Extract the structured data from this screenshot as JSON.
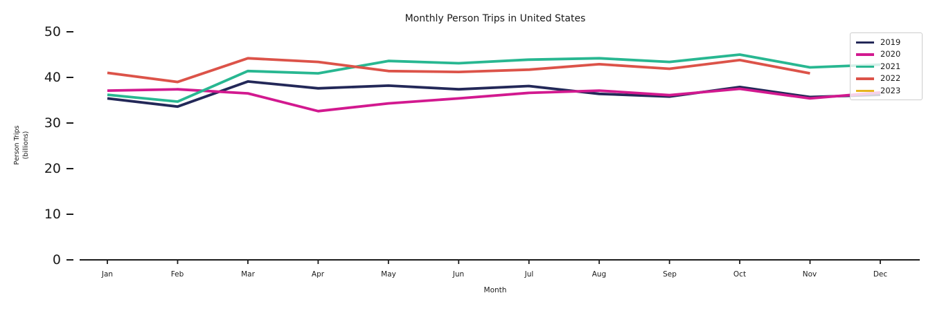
{
  "title": "Monthly Person Trips in United States",
  "chart_data": {
    "type": "line",
    "title": "Monthly Person Trips in United States",
    "xlabel": "Month",
    "ylabel": "Person Trips",
    "ylabel_line2": "(billions)",
    "categories": [
      "Jan",
      "Feb",
      "Mar",
      "Apr",
      "May",
      "Jun",
      "Jul",
      "Aug",
      "Sep",
      "Oct",
      "Nov",
      "Dec"
    ],
    "yticks": [
      0,
      10,
      20,
      30,
      40,
      50
    ],
    "ylim": [
      0,
      52
    ],
    "grid": false,
    "legend_position": "upper right",
    "series": [
      {
        "name": "2019",
        "color": "#232858",
        "values": [
          35.4,
          33.6,
          39.1,
          37.6,
          38.2,
          37.4,
          38.1,
          36.4,
          35.8,
          37.9,
          35.7,
          36.2
        ]
      },
      {
        "name": "2020",
        "color": "#d2198f",
        "values": [
          37.1,
          37.4,
          36.5,
          32.6,
          34.3,
          35.4,
          36.6,
          37.1,
          36.1,
          37.5,
          35.4,
          36.7
        ]
      },
      {
        "name": "2021",
        "color": "#28b791",
        "values": [
          36.2,
          34.7,
          41.4,
          40.9,
          43.6,
          43.1,
          43.9,
          44.2,
          43.4,
          45.0,
          42.2,
          42.8
        ]
      },
      {
        "name": "2022",
        "color": "#dc5349",
        "values": [
          41.0,
          39.0,
          44.2,
          43.4,
          41.4,
          41.2,
          41.7,
          42.9,
          41.9,
          43.8,
          40.9
        ]
      },
      {
        "name": "2023",
        "color": "#e6b41f",
        "values": []
      }
    ]
  },
  "colors": {
    "axis": "#1a1a1a",
    "text": "#1a1a1a",
    "legend_border": "#cccccc",
    "background": "#ffffff"
  }
}
